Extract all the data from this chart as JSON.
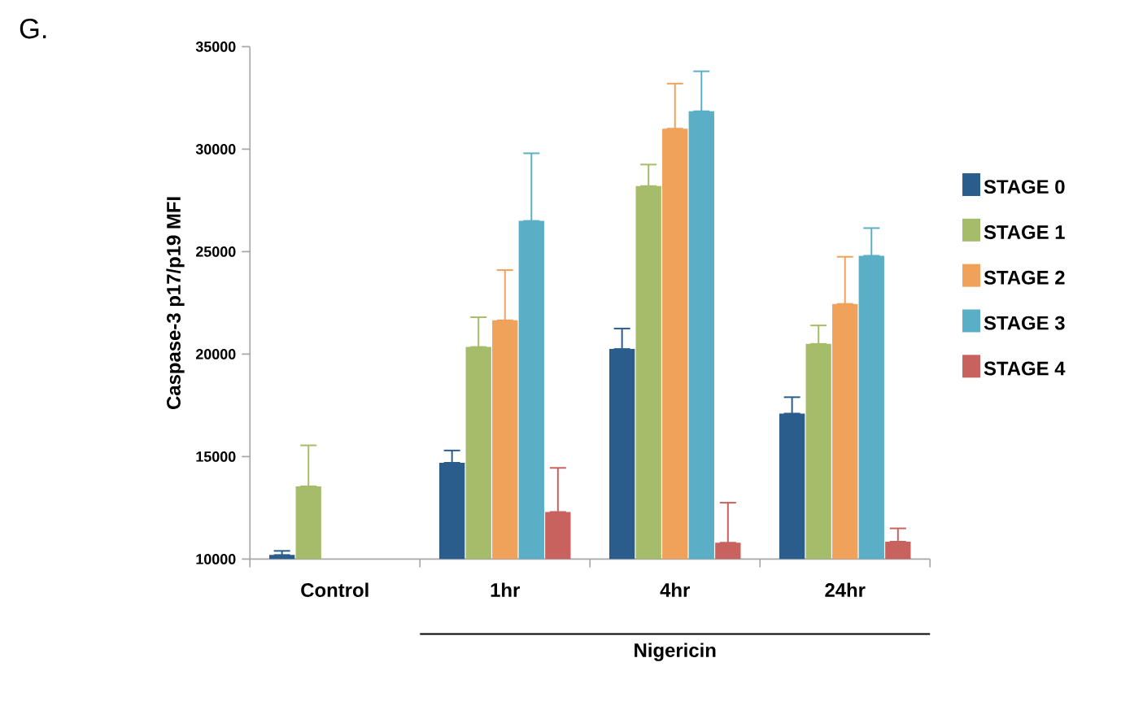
{
  "chart_data": {
    "type": "bar",
    "ylabel": "Caspase-3 p17/p19 MFI",
    "annotations": [
      "G.",
      "Nigericin"
    ],
    "categories": [
      "Control",
      "1hr",
      "4hr",
      "24hr"
    ],
    "series": [
      {
        "name": "STAGE 0",
        "color": "#2a5d8c",
        "values": [
          10200,
          14700,
          20250,
          17100
        ],
        "errors": [
          [
            10200,
            10400
          ],
          [
            14700,
            15300
          ],
          [
            20250,
            21250
          ],
          [
            17100,
            17900
          ]
        ]
      },
      {
        "name": "STAGE 1",
        "color": "#a5bd6a",
        "values": [
          13550,
          20350,
          28200,
          20500
        ],
        "errors": [
          [
            13550,
            15550
          ],
          [
            20350,
            21800
          ],
          [
            28200,
            29250
          ],
          [
            20500,
            21400
          ]
        ]
      },
      {
        "name": "STAGE 2",
        "color": "#f0a15a",
        "values": [
          null,
          21650,
          31000,
          22450
        ],
        "errors": [
          null,
          [
            21650,
            24100
          ],
          [
            31000,
            33200
          ],
          [
            22450,
            24750
          ]
        ]
      },
      {
        "name": "STAGE 3",
        "color": "#5aafc6",
        "values": [
          null,
          26500,
          31850,
          24800
        ],
        "errors": [
          null,
          [
            26500,
            29800
          ],
          [
            31850,
            33800
          ],
          [
            24800,
            26150
          ]
        ]
      },
      {
        "name": "STAGE 4",
        "color": "#c8625e",
        "values": [
          null,
          12300,
          10800,
          10850
        ],
        "errors": [
          null,
          [
            12300,
            14450
          ],
          [
            10800,
            12750
          ],
          [
            10850,
            11500
          ]
        ]
      }
    ],
    "ylim": [
      10000,
      35000
    ],
    "yticks": [
      10000,
      15000,
      20000,
      25000,
      30000,
      35000
    ],
    "legend": "right"
  }
}
